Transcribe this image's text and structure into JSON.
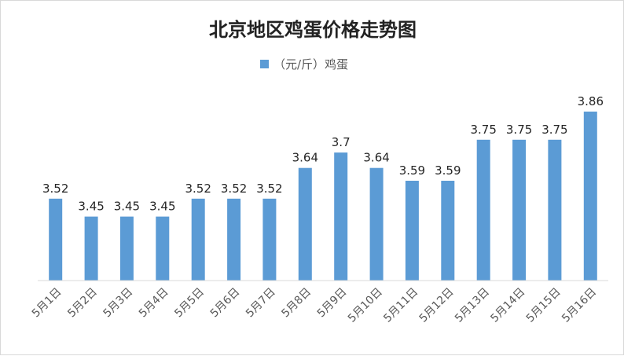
{
  "chart_data": {
    "type": "bar",
    "title": "北京地区鸡蛋价格走势图",
    "categories": [
      "5月1日",
      "5月2日",
      "5月3日",
      "5月4日",
      "5月5日",
      "5月6日",
      "5月7日",
      "5月8日",
      "5月9日",
      "5月10日",
      "5月11日",
      "5月12日",
      "5月13日",
      "5月14日",
      "5月15日",
      "5月16日"
    ],
    "series": [
      {
        "name": "（元/斤）鸡蛋",
        "values": [
          3.52,
          3.45,
          3.45,
          3.45,
          3.52,
          3.52,
          3.52,
          3.64,
          3.7,
          3.64,
          3.59,
          3.59,
          3.75,
          3.75,
          3.75,
          3.86
        ]
      }
    ],
    "data_labels": [
      "3.52",
      "3.45",
      "3.45",
      "3.45",
      "3.52",
      "3.52",
      "3.52",
      "3.64",
      "3.7",
      "3.64",
      "3.59",
      "3.59",
      "3.75",
      "3.75",
      "3.75",
      "3.86"
    ],
    "ylim": [
      3.2,
      3.9
    ],
    "grid": false,
    "legend_position": "top-center",
    "colors": {
      "bar": "#5b9bd5",
      "axis": "#d9d9d9"
    }
  }
}
